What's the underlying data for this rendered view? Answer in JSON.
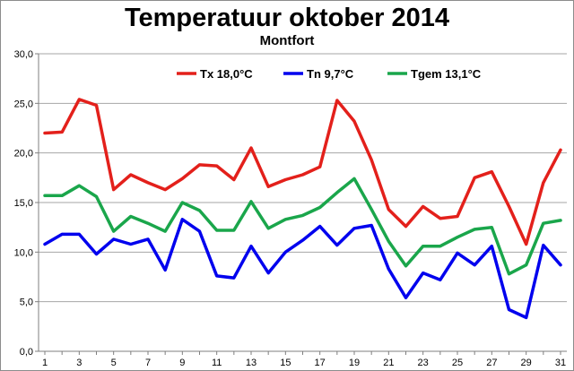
{
  "chart_data": {
    "type": "line",
    "title": "Temperatuur oktober 2014",
    "subtitle": "Montfort",
    "xlabel": "",
    "ylabel": "",
    "ylim": [
      0,
      30
    ],
    "ytick_labels": [
      "0,0",
      "5,0",
      "10,0",
      "15,0",
      "20,0",
      "25,0",
      "30,0"
    ],
    "xtick_labels": [
      "1",
      "3",
      "5",
      "7",
      "9",
      "11",
      "13",
      "15",
      "17",
      "19",
      "21",
      "23",
      "25",
      "27",
      "29",
      "31"
    ],
    "x": [
      1,
      2,
      3,
      4,
      5,
      6,
      7,
      8,
      9,
      10,
      11,
      12,
      13,
      14,
      15,
      16,
      17,
      18,
      19,
      20,
      21,
      22,
      23,
      24,
      25,
      26,
      27,
      28,
      29,
      30,
      31
    ],
    "grid": "horizontal",
    "legend_position": "top",
    "series": [
      {
        "name": "Tx 18,0°C",
        "color": "#e3201b",
        "values": [
          22.0,
          22.1,
          25.4,
          24.8,
          16.3,
          17.8,
          17.0,
          16.3,
          17.4,
          18.8,
          18.7,
          17.3,
          20.5,
          16.6,
          17.3,
          17.8,
          18.6,
          25.3,
          23.2,
          19.3,
          14.3,
          12.6,
          14.6,
          13.4,
          13.6,
          17.5,
          18.1,
          14.6,
          10.8,
          17.0,
          20.3
        ]
      },
      {
        "name": "Tn 9,7°C",
        "color": "#0000ee",
        "values": [
          10.8,
          11.8,
          11.8,
          9.8,
          11.3,
          10.8,
          11.3,
          8.2,
          13.3,
          12.1,
          7.6,
          7.4,
          10.6,
          7.9,
          10.0,
          11.2,
          12.6,
          10.7,
          12.4,
          12.7,
          8.3,
          5.4,
          7.9,
          7.2,
          9.9,
          8.7,
          10.6,
          4.2,
          3.4,
          10.7,
          8.7
        ]
      },
      {
        "name": "Tgem 13,1°C",
        "color": "#1aa64b",
        "values": [
          15.7,
          15.7,
          16.7,
          15.6,
          12.1,
          13.6,
          12.9,
          12.1,
          15.0,
          14.2,
          12.2,
          12.2,
          15.1,
          12.4,
          13.3,
          13.7,
          14.5,
          16.0,
          17.4,
          14.3,
          11.1,
          8.6,
          10.6,
          10.6,
          11.5,
          12.3,
          12.5,
          7.8,
          8.7,
          12.9,
          13.2
        ]
      }
    ]
  }
}
